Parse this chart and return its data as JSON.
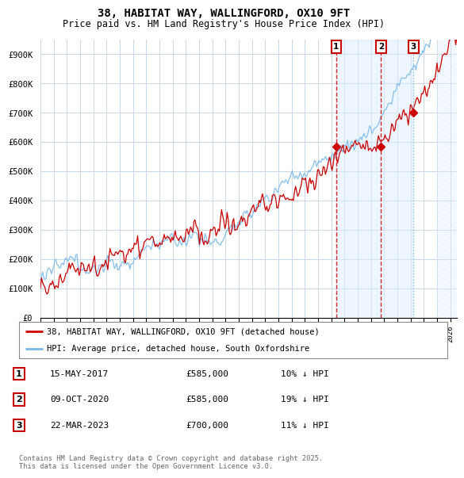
{
  "title": "38, HABITAT WAY, WALLINGFORD, OX10 9FT",
  "subtitle": "Price paid vs. HM Land Registry's House Price Index (HPI)",
  "ylabel_ticks": [
    "£0",
    "£100K",
    "£200K",
    "£300K",
    "£400K",
    "£500K",
    "£600K",
    "£700K",
    "£800K",
    "£900K"
  ],
  "ytick_values": [
    0,
    100000,
    200000,
    300000,
    400000,
    500000,
    600000,
    700000,
    800000,
    900000
  ],
  "ylim": [
    0,
    950000
  ],
  "xlim_start": 1995.0,
  "xlim_end": 2026.5,
  "hpi_color": "#7ab8e8",
  "price_color": "#cc0000",
  "vline_color1": "#cc0000",
  "vline_color2": "#cc0000",
  "vline_color3": "#7ab8e8",
  "legend_line1": "38, HABITAT WAY, WALLINGFORD, OX10 9FT (detached house)",
  "legend_line2": "HPI: Average price, detached house, South Oxfordshire",
  "transactions": [
    {
      "num": 1,
      "date": "15-MAY-2017",
      "price": "£585,000",
      "hpi": "10% ↓ HPI",
      "year": 2017.37
    },
    {
      "num": 2,
      "date": "09-OCT-2020",
      "price": "£585,000",
      "hpi": "19% ↓ HPI",
      "year": 2020.77
    },
    {
      "num": 3,
      "date": "22-MAR-2023",
      "price": "£700,000",
      "hpi": "11% ↓ HPI",
      "year": 2023.22
    }
  ],
  "transaction_prices": [
    585000,
    585000,
    700000
  ],
  "footer": "Contains HM Land Registry data © Crown copyright and database right 2025.\nThis data is licensed under the Open Government Licence v3.0.",
  "background_color": "#ffffff",
  "grid_color": "#c8d8e8",
  "shade_color": "#ddeeff"
}
